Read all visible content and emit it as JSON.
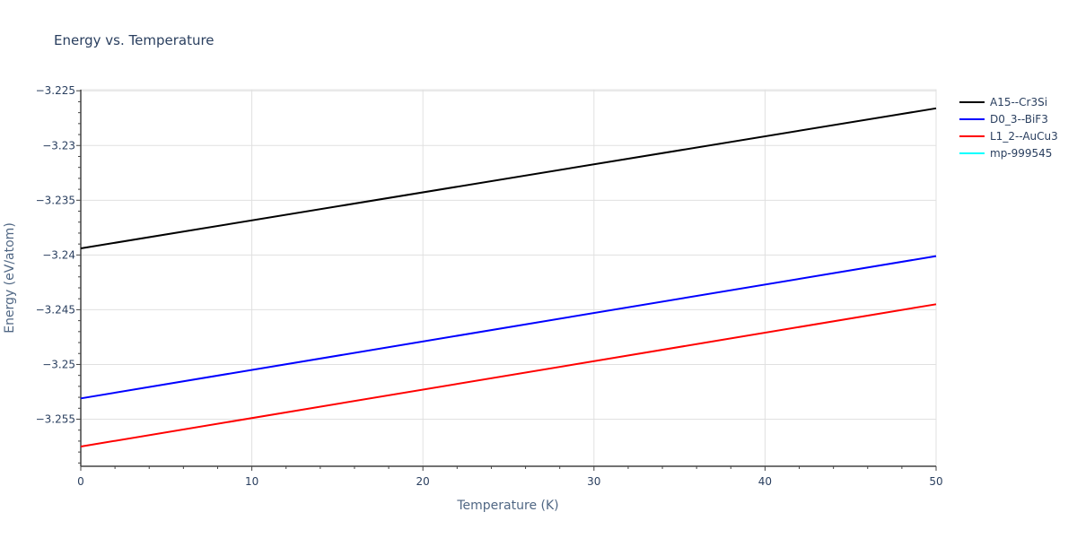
{
  "chart_data": {
    "type": "line",
    "title": "Energy vs. Temperature",
    "xlabel": "Temperature (K)",
    "ylabel": "Energy (eV/atom)",
    "xlim": [
      0,
      50
    ],
    "ylim": [
      -3.2593,
      -3.2249
    ],
    "xticks": [
      0,
      10,
      20,
      30,
      40,
      50
    ],
    "xtick_labels": [
      "0",
      "10",
      "20",
      "30",
      "40",
      "50"
    ],
    "yticks": [
      -3.225,
      -3.23,
      -3.235,
      -3.24,
      -3.245,
      -3.25,
      -3.255
    ],
    "ytick_labels": [
      "−3.225",
      "−3.23",
      "−3.235",
      "−3.24",
      "−3.245",
      "−3.25",
      "−3.255"
    ],
    "grid": true,
    "legend_position": "right",
    "series": [
      {
        "name": "A15--Cr3Si",
        "color": "#000000",
        "x": [
          0,
          50
        ],
        "y": [
          -3.2394,
          -3.2266
        ]
      },
      {
        "name": "D0_3--BiF3",
        "color": "#0000ff",
        "x": [
          0,
          50
        ],
        "y": [
          -3.2531,
          -3.2401
        ]
      },
      {
        "name": "L1_2--AuCu3",
        "color": "#ff0000",
        "x": [
          0,
          50
        ],
        "y": [
          -3.2575,
          -3.2445
        ]
      },
      {
        "name": "mp-999545",
        "color": "#00ffff",
        "x": [],
        "y": []
      }
    ]
  }
}
